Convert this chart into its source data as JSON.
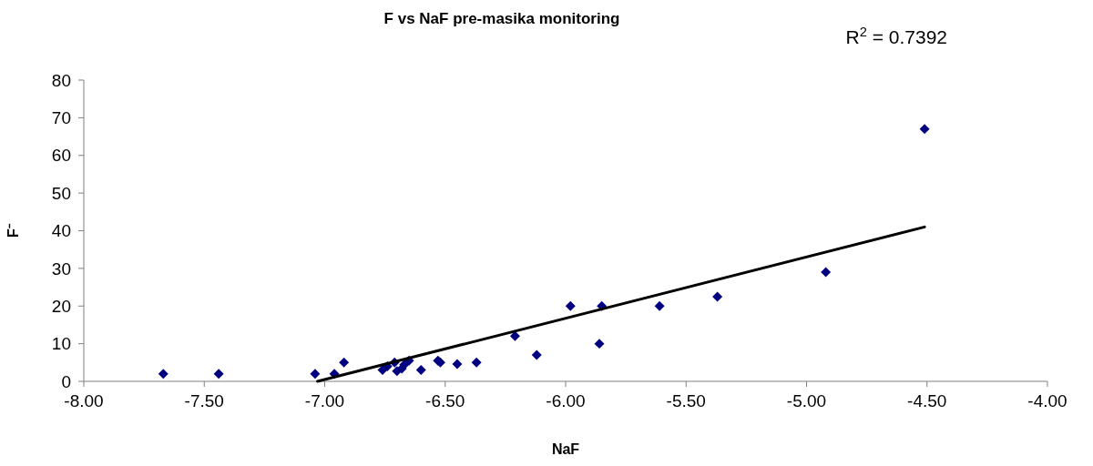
{
  "chart_data": {
    "type": "scatter",
    "title": "F vs NaF pre-masika monitoring",
    "xlabel": "NaF",
    "ylabel": "F⁻",
    "annotations": [
      "R$^{2}$ = 0.7392"
    ],
    "xlim": [
      -8,
      -4
    ],
    "xticks": [
      {
        "value": -8,
        "label": "-8.00"
      },
      {
        "value": -7.5,
        "label": "-7.50"
      },
      {
        "value": -7,
        "label": "-7.00"
      },
      {
        "value": -6.5,
        "label": "-6.50"
      },
      {
        "value": -6,
        "label": "-6.00"
      },
      {
        "value": -5.5,
        "label": "-5.50"
      },
      {
        "value": -5,
        "label": "-5.00"
      },
      {
        "value": -4.5,
        "label": "-4.50"
      },
      {
        "value": -4,
        "label": "-4.00"
      }
    ],
    "ylim": [
      0,
      80
    ],
    "yticks": [
      0,
      10,
      20,
      30,
      40,
      50,
      60,
      70,
      80
    ],
    "grid": false,
    "series": [
      {
        "color": "#000080",
        "marker": "diamond",
        "x": [
          -7.67,
          -7.44,
          -7.04,
          -6.96,
          -6.92,
          -6.76,
          -6.74,
          -6.71,
          -6.7,
          -6.68,
          -6.67,
          -6.65,
          -6.6,
          -6.53,
          -6.52,
          -6.45,
          -6.37,
          -6.21,
          -6.12,
          -5.98,
          -5.86,
          -5.85,
          -5.61,
          -5.37,
          -4.92,
          -4.51
        ],
        "values": [
          2,
          2,
          2,
          2,
          5,
          3,
          4,
          5,
          2.7,
          3.4,
          4.4,
          5.5,
          3,
          5.5,
          5,
          4.6,
          5,
          12,
          7,
          20,
          10,
          20,
          20,
          22.5,
          29,
          67
        ]
      },
      {
        "type": "line",
        "color": "#000000",
        "line_style": "solid",
        "marker": "none",
        "x": [
          -7.03,
          -4.51
        ],
        "values": [
          0,
          41
        ]
      }
    ]
  }
}
